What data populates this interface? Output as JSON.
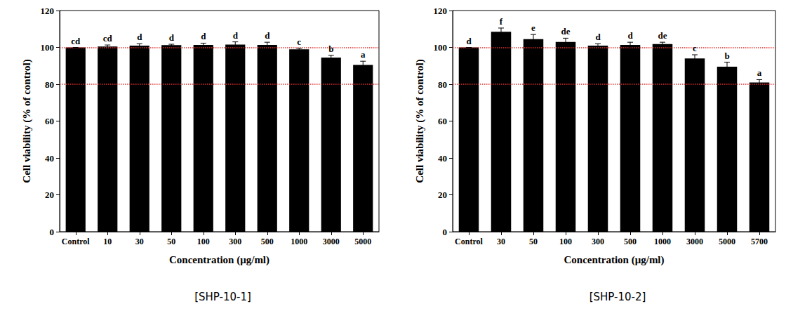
{
  "chart_data": [
    {
      "type": "bar",
      "title": "[SHP-10-1]",
      "x_label": "Concentration (μg/ml)",
      "y_label": "Cell viability (% of control)",
      "categories": [
        "Control",
        "10",
        "30",
        "50",
        "100",
        "300",
        "500",
        "1000",
        "3000",
        "5000"
      ],
      "values": [
        100,
        100.5,
        101,
        101.2,
        101.3,
        101.5,
        101.3,
        99,
        94.5,
        90.5
      ],
      "errors": [
        0,
        0.8,
        1,
        0.5,
        1,
        1.5,
        1.5,
        0.5,
        1.2,
        2
      ],
      "annotations": [
        "cd",
        "cd",
        "d",
        "d",
        "d",
        "d",
        "d",
        "c",
        "b",
        "a"
      ],
      "reference_lines": [
        80,
        100
      ],
      "color": "#000000",
      "ylim": [
        0,
        120
      ],
      "yticks": [
        0,
        20,
        40,
        60,
        80,
        100,
        120
      ],
      "grid": false
    },
    {
      "type": "bar",
      "title": "[SHP-10-2]",
      "x_label": "Concentration (μg/ml)",
      "y_label": "Cell viability (% of control)",
      "categories": [
        "Control",
        "30",
        "50",
        "100",
        "300",
        "500",
        "1000",
        "3000",
        "5000",
        "5700"
      ],
      "values": [
        100,
        108.5,
        104.5,
        103,
        101,
        101.3,
        101.8,
        94,
        89.5,
        81
      ],
      "errors": [
        0,
        2,
        2.5,
        2,
        1,
        1.5,
        1,
        2,
        2.5,
        1.5
      ],
      "annotations": [
        "d",
        "f",
        "e",
        "de",
        "d",
        "d",
        "de",
        "c",
        "b",
        "a"
      ],
      "reference_lines": [
        80,
        100
      ],
      "color": "#000000",
      "ylim": [
        0,
        120
      ],
      "yticks": [
        0,
        20,
        40,
        60,
        80,
        100,
        120
      ],
      "grid": false
    }
  ]
}
